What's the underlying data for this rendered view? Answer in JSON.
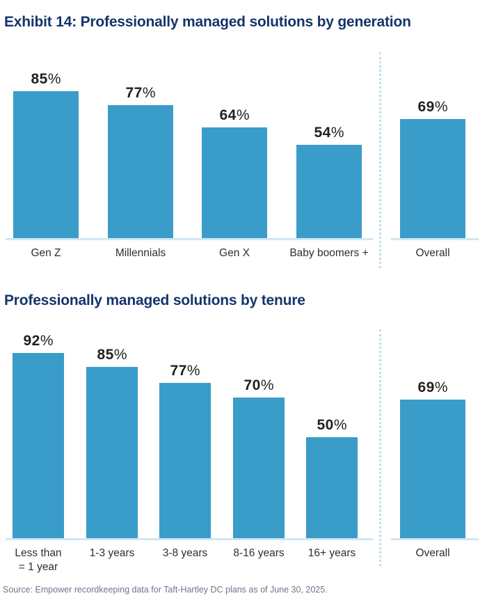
{
  "source": "Source: Empower recordkeeping data for Taft-Hartley DC plans as of June 30, 2025.",
  "colors": {
    "bar": "#3A9CC9",
    "title": "#14356B",
    "value_label": "#231F20",
    "category_label": "#2E2E2E",
    "axis_line": "#CFE7F3",
    "divider_dots": "#BFDCEE",
    "source_text": "#6B7787"
  },
  "chart_data": [
    {
      "type": "bar",
      "title": "Exhibit 14: Professionally managed solutions by generation",
      "categories": [
        "Gen Z",
        "Millennials",
        "Gen X",
        "Baby boomers +"
      ],
      "values": [
        85,
        77,
        64,
        54
      ],
      "overall_label": "Overall",
      "overall_value": 69,
      "value_suffix": "%",
      "ylim": [
        0,
        100
      ],
      "xlabel": "",
      "ylabel": "",
      "grid": false,
      "legend": false,
      "bar_color": "#3A9CC9"
    },
    {
      "type": "bar",
      "title": "Professionally managed solutions by tenure",
      "categories": [
        "Less than\n= 1 year",
        "1-3 years",
        "3-8 years",
        "8-16 years",
        "16+ years"
      ],
      "values": [
        92,
        85,
        77,
        70,
        50
      ],
      "overall_label": "Overall",
      "overall_value": 69,
      "value_suffix": "%",
      "ylim": [
        0,
        100
      ],
      "xlabel": "",
      "ylabel": "",
      "grid": false,
      "legend": false,
      "bar_color": "#3A9CC9"
    }
  ]
}
